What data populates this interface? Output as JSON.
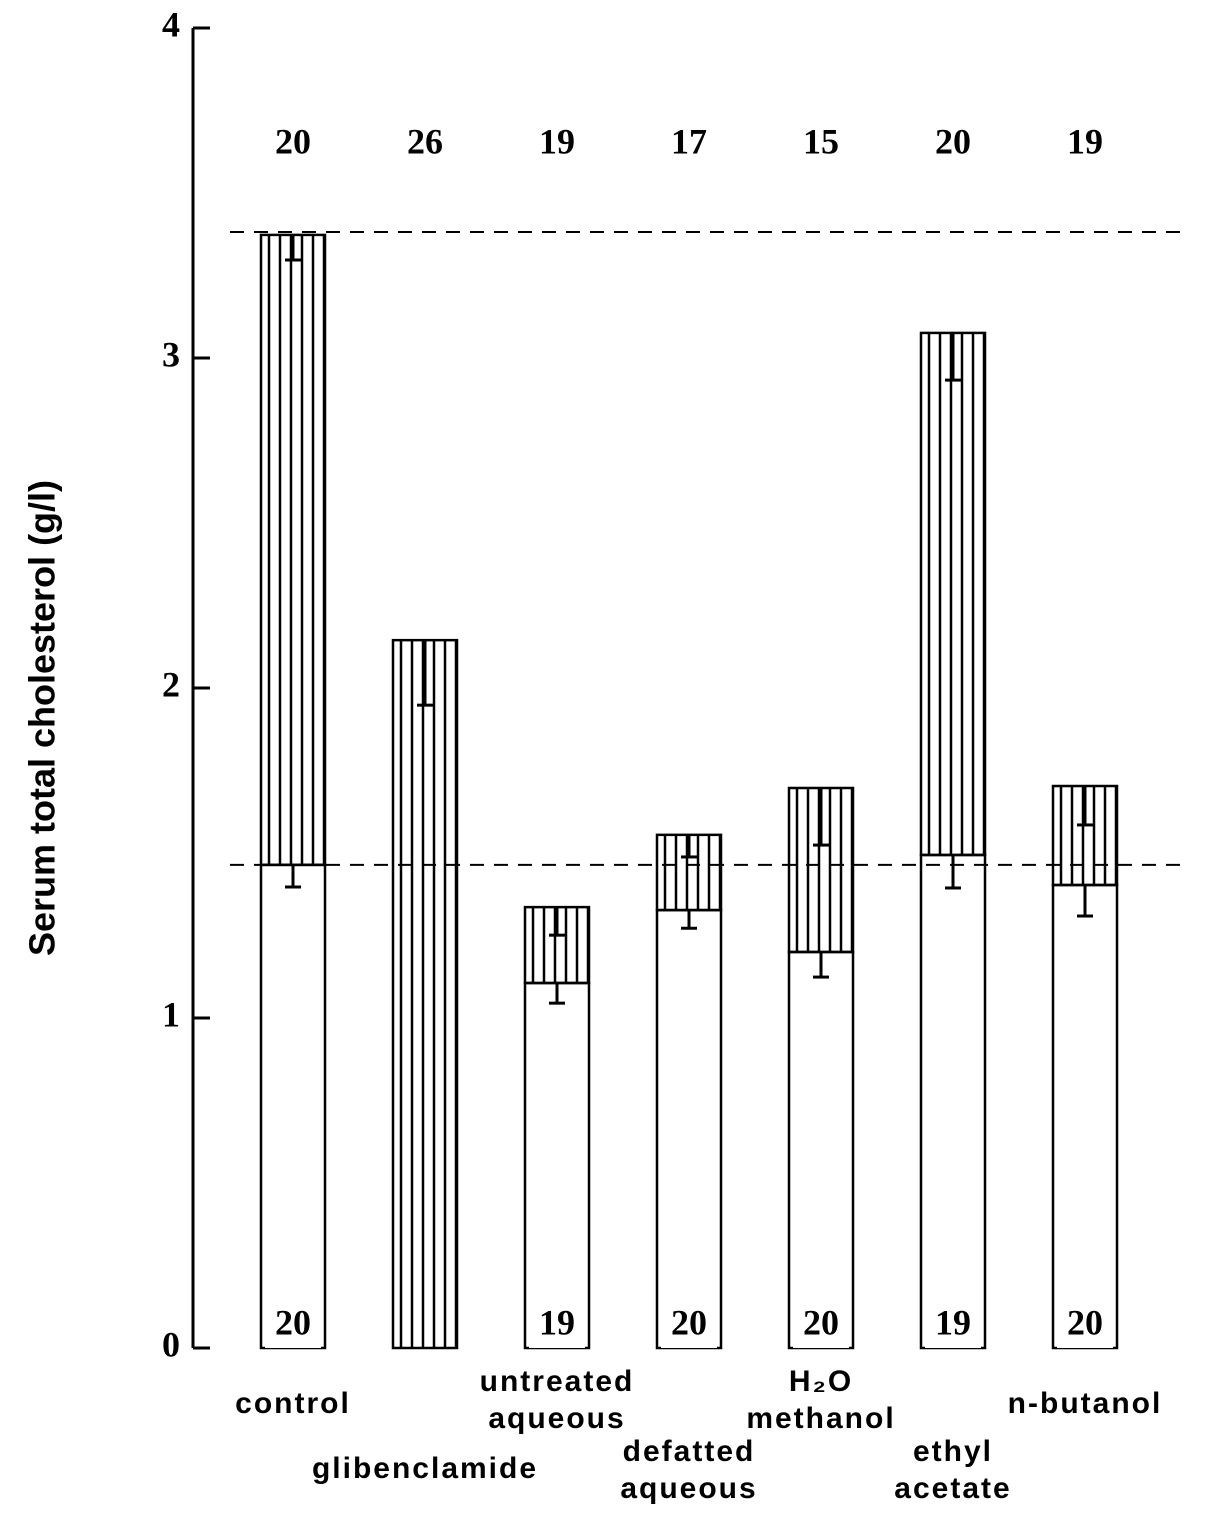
{
  "chart_data": {
    "type": "bar",
    "y_label": "Serum total cholesterol (g/l)",
    "categories": [
      [
        "control"
      ],
      [
        "glibenclamide"
      ],
      [
        "untreated",
        "aqueous"
      ],
      [
        "defatted",
        "aqueous"
      ],
      [
        "H₂O",
        "methanol"
      ],
      [
        "ethyl",
        "acetate"
      ],
      [
        "n-butanol"
      ]
    ],
    "series": [
      {
        "color": "#ffffff",
        "values": [
          1.464,
          null,
          1.106,
          1.327,
          1.2,
          1.494,
          1.403
        ],
        "errors": [
          0.067,
          null,
          0.061,
          0.055,
          0.076,
          0.1,
          0.094
        ],
        "counts": [
          20,
          null,
          19,
          20,
          20,
          19,
          20
        ]
      },
      {
        "color": "#000000",
        "hatched": true,
        "values": [
          1.909,
          2.145,
          0.23,
          0.228,
          0.497,
          1.582,
          0.3
        ],
        "errors": [
          0.076,
          0.197,
          0.085,
          0.067,
          0.173,
          0.143,
          0.118
        ],
        "counts": [
          20,
          26,
          19,
          17,
          15,
          20,
          19
        ]
      }
    ],
    "reference_lines": [
      1.464,
      3.382
    ],
    "ylim": [
      0,
      4
    ],
    "yticks": [
      0,
      1,
      2,
      3,
      4
    ]
  }
}
